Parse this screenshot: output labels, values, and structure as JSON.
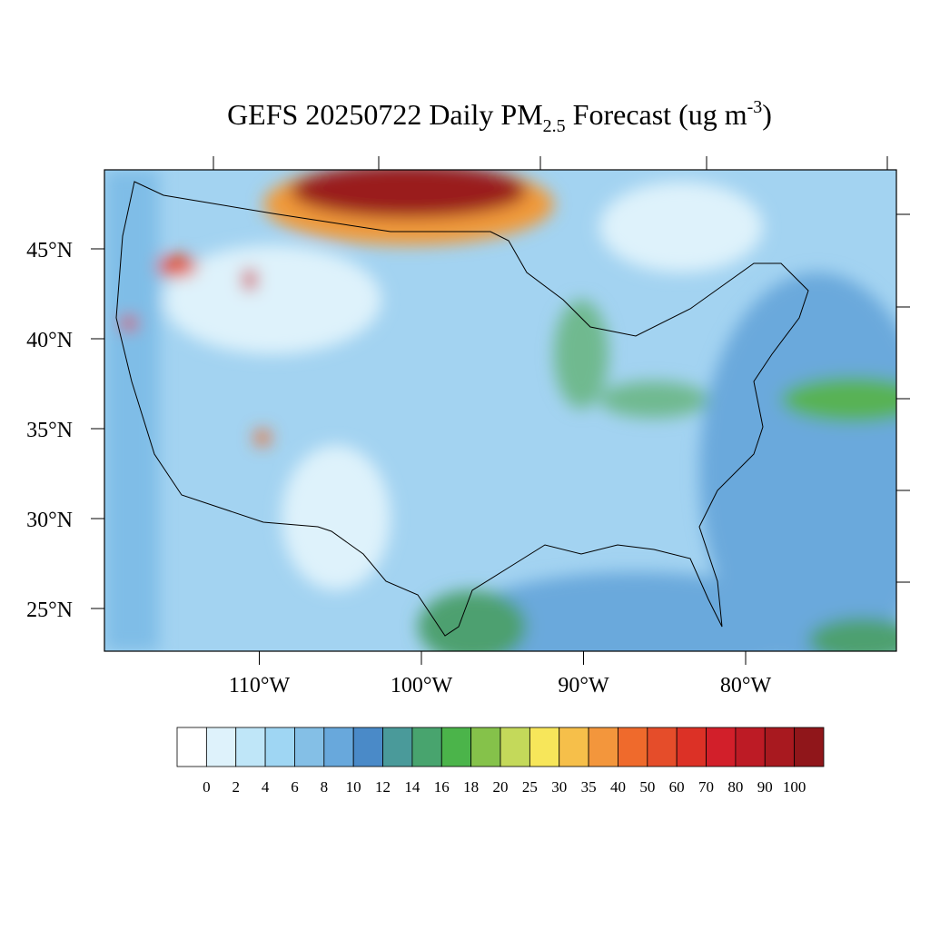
{
  "title": {
    "main": "GEFS 20250722 Daily PM",
    "sub": "2.5",
    "mid": " Forecast (ug m",
    "sup": "-3",
    "end": ")"
  },
  "lat_labels": [
    {
      "value": 45,
      "label": "45°N"
    },
    {
      "value": 40,
      "label": "40°N"
    },
    {
      "value": 35,
      "label": "35°N"
    },
    {
      "value": 30,
      "label": "30°N"
    },
    {
      "value": 25,
      "label": "25°N"
    }
  ],
  "lon_labels": [
    {
      "value": -110,
      "label": "110°W"
    },
    {
      "value": -100,
      "label": "100°W"
    },
    {
      "value": -90,
      "label": "90°W"
    },
    {
      "value": -80,
      "label": "80°W"
    }
  ],
  "colorbar": {
    "levels": [
      0,
      2,
      4,
      6,
      8,
      10,
      12,
      14,
      16,
      18,
      20,
      25,
      30,
      35,
      40,
      50,
      60,
      70,
      80,
      90,
      100
    ],
    "colors": [
      "#ffffff",
      "#def2fb",
      "#bfe6f8",
      "#9fd6f3",
      "#84bfe6",
      "#68a8dc",
      "#4a8ac8",
      "#4a9a9a",
      "#48a46e",
      "#4bb44a",
      "#85c24a",
      "#c4d95a",
      "#f7e65a",
      "#f6bf4a",
      "#f3963c",
      "#ef6a2c",
      "#e54d2a",
      "#dc3126",
      "#d21f2a",
      "#bd1b25",
      "#a8191f",
      "#90161a"
    ]
  }
}
